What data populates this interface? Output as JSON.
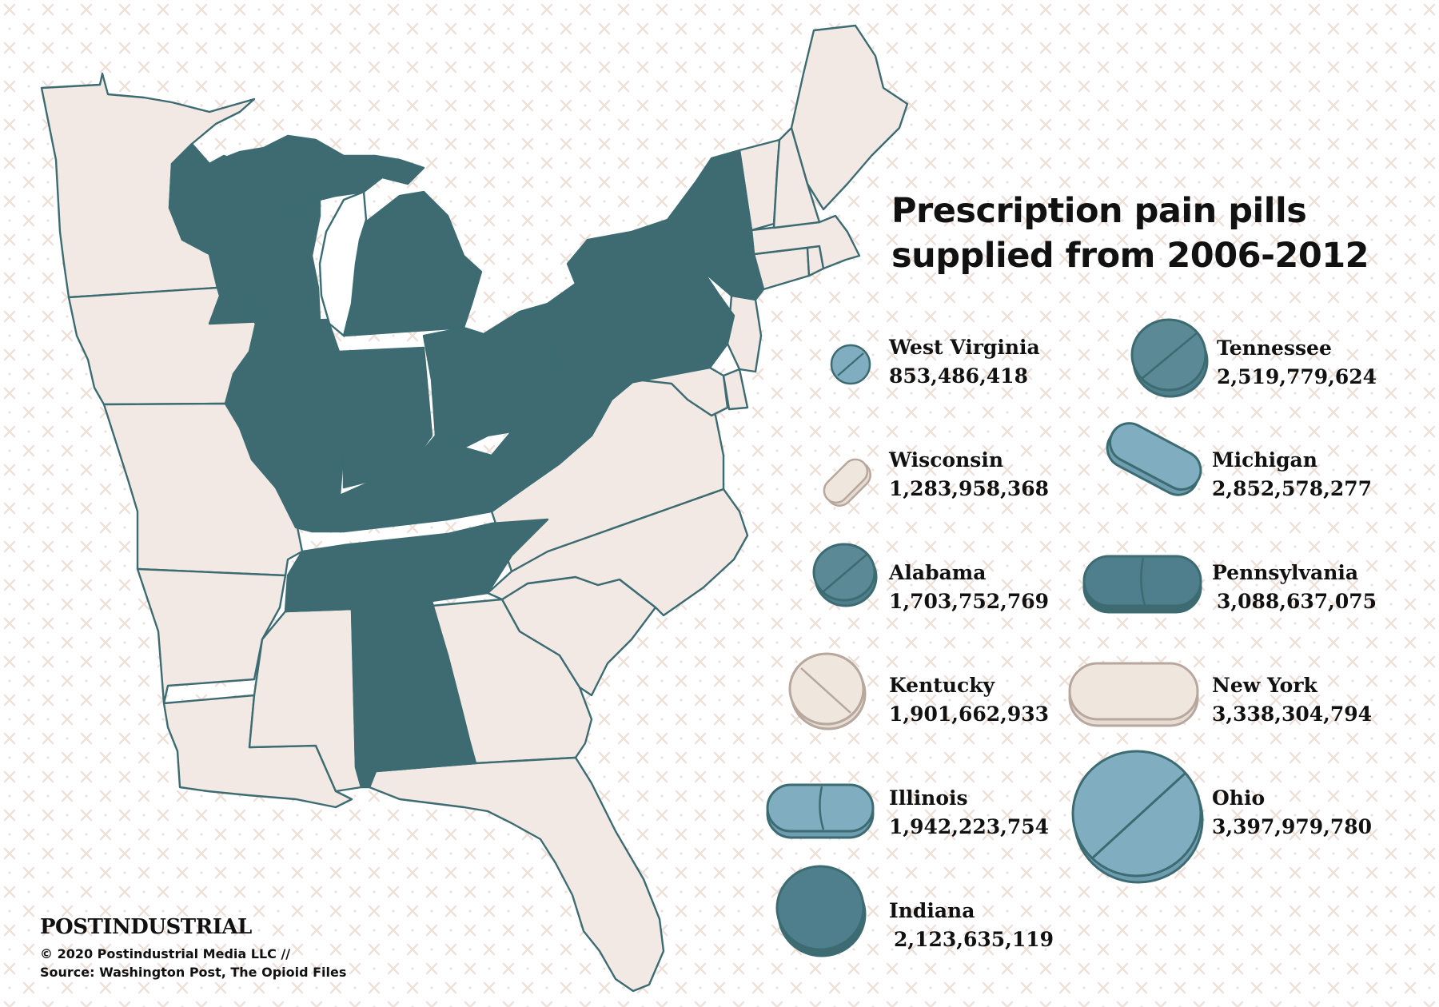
{
  "title_line1": "Prescription pain pills",
  "title_line2": "supplied from 2006-2012",
  "colors": {
    "highlight": "#3e6b72",
    "other_states": "#f3e9e4",
    "pill_light_blue": "#80adc0",
    "pill_dark_teal": "#4f7f8c",
    "pill_beige": "#e6dcd3",
    "outline": "#3c6b72"
  },
  "entries": [
    {
      "state": "West Virginia",
      "value": "853,486,418"
    },
    {
      "state": "Tennessee",
      "value": "2,519,779,624"
    },
    {
      "state": "Wisconsin",
      "value": "1,283,958,368"
    },
    {
      "state": "Michigan",
      "value": "2,852,578,277"
    },
    {
      "state": "Alabama",
      "value": "1,703,752,769"
    },
    {
      "state": "Pennsylvania",
      "value": "3,088,637,075"
    },
    {
      "state": "Kentucky",
      "value": "1,901,662,933"
    },
    {
      "state": "New York",
      "value": "3,338,304,794"
    },
    {
      "state": "Illinois",
      "value": "1,942,223,754"
    },
    {
      "state": "Ohio",
      "value": "3,397,979,780"
    },
    {
      "state": "Indiana",
      "value": "2,123,635,119"
    }
  ],
  "highlighted_states": [
    "West Virginia",
    "Tennessee",
    "Wisconsin",
    "Michigan",
    "Alabama",
    "Pennsylvania",
    "Kentucky",
    "New York",
    "Illinois",
    "Ohio",
    "Indiana"
  ],
  "footer": {
    "brand": "POSTINDUSTRIAL",
    "copyright": "© 2020 Postindustrial Media LLC //",
    "source": "Source: Washington Post, The Opioid Files"
  }
}
